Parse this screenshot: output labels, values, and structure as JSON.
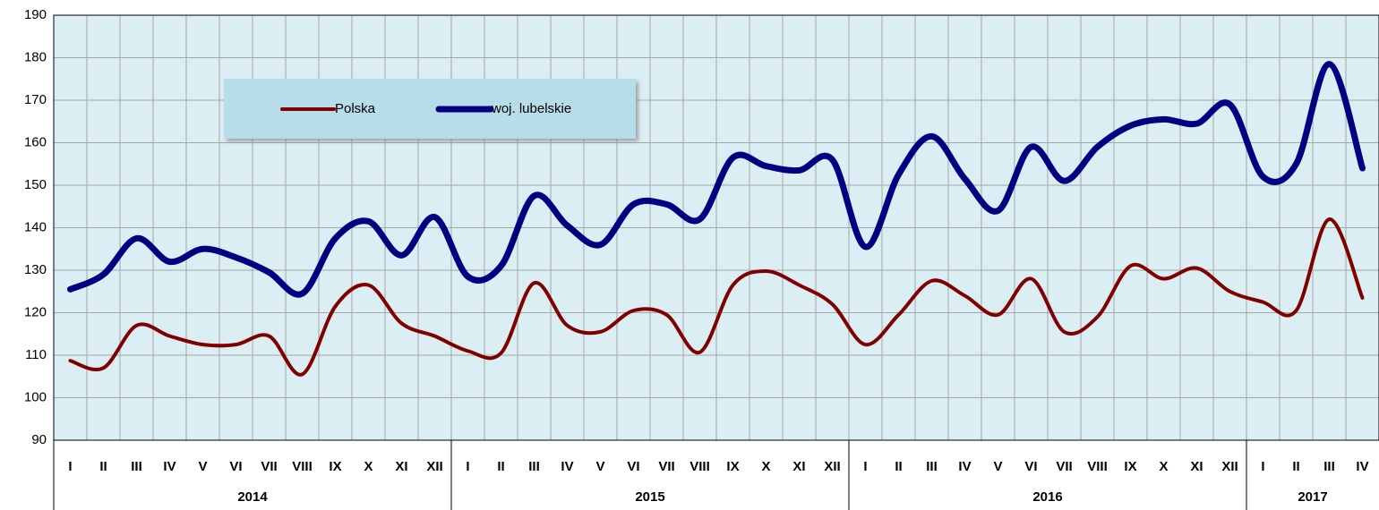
{
  "chart_data": {
    "type": "line",
    "groups": [
      {
        "label": "2014",
        "categories": [
          "I",
          "II",
          "III",
          "IV",
          "V",
          "VI",
          "VII",
          "VIII",
          "IX",
          "X",
          "XI",
          "XII"
        ]
      },
      {
        "label": "2015",
        "categories": [
          "I",
          "II",
          "III",
          "IV",
          "V",
          "VI",
          "VII",
          "VIII",
          "IX",
          "X",
          "XI",
          "XII"
        ]
      },
      {
        "label": "2016",
        "categories": [
          "I",
          "II",
          "III",
          "IV",
          "V",
          "VI",
          "VII",
          "VIII",
          "IX",
          "X",
          "XI",
          "XII"
        ]
      },
      {
        "label": "2017",
        "categories": [
          "I",
          "II",
          "III",
          "IV"
        ]
      }
    ],
    "series": [
      {
        "name": "Polska",
        "color": "#800000",
        "values": [
          108.7,
          107,
          117,
          114.5,
          112.5,
          112.5,
          114.5,
          105.5,
          121.5,
          126.5,
          117.5,
          114.5,
          111,
          110.5,
          127,
          117,
          115.5,
          120.5,
          119.5,
          110.7,
          126.5,
          129.8,
          126.5,
          122,
          112.5,
          119.5,
          127.5,
          124,
          119.5,
          128,
          115.5,
          119,
          131,
          128,
          130.5,
          125,
          122.5,
          120.5,
          142,
          123.5
        ]
      },
      {
        "name": "woj. lubelskie",
        "color": "#000080",
        "values": [
          125.5,
          129,
          137.5,
          132,
          135,
          133,
          129.5,
          124.5,
          137.5,
          141.5,
          133.5,
          142.5,
          128.5,
          131,
          147.5,
          140.5,
          136,
          145.5,
          145.5,
          142,
          156.5,
          154.5,
          153.5,
          156,
          135.5,
          152.5,
          161.5,
          151.5,
          144,
          159,
          151,
          159,
          164,
          165.5,
          164.5,
          169,
          152,
          155,
          178.5,
          154
        ]
      }
    ],
    "ylim": [
      90,
      190
    ],
    "yticks": [
      90,
      100,
      110,
      120,
      130,
      140,
      150,
      160,
      170,
      180,
      190
    ],
    "grid": true
  }
}
